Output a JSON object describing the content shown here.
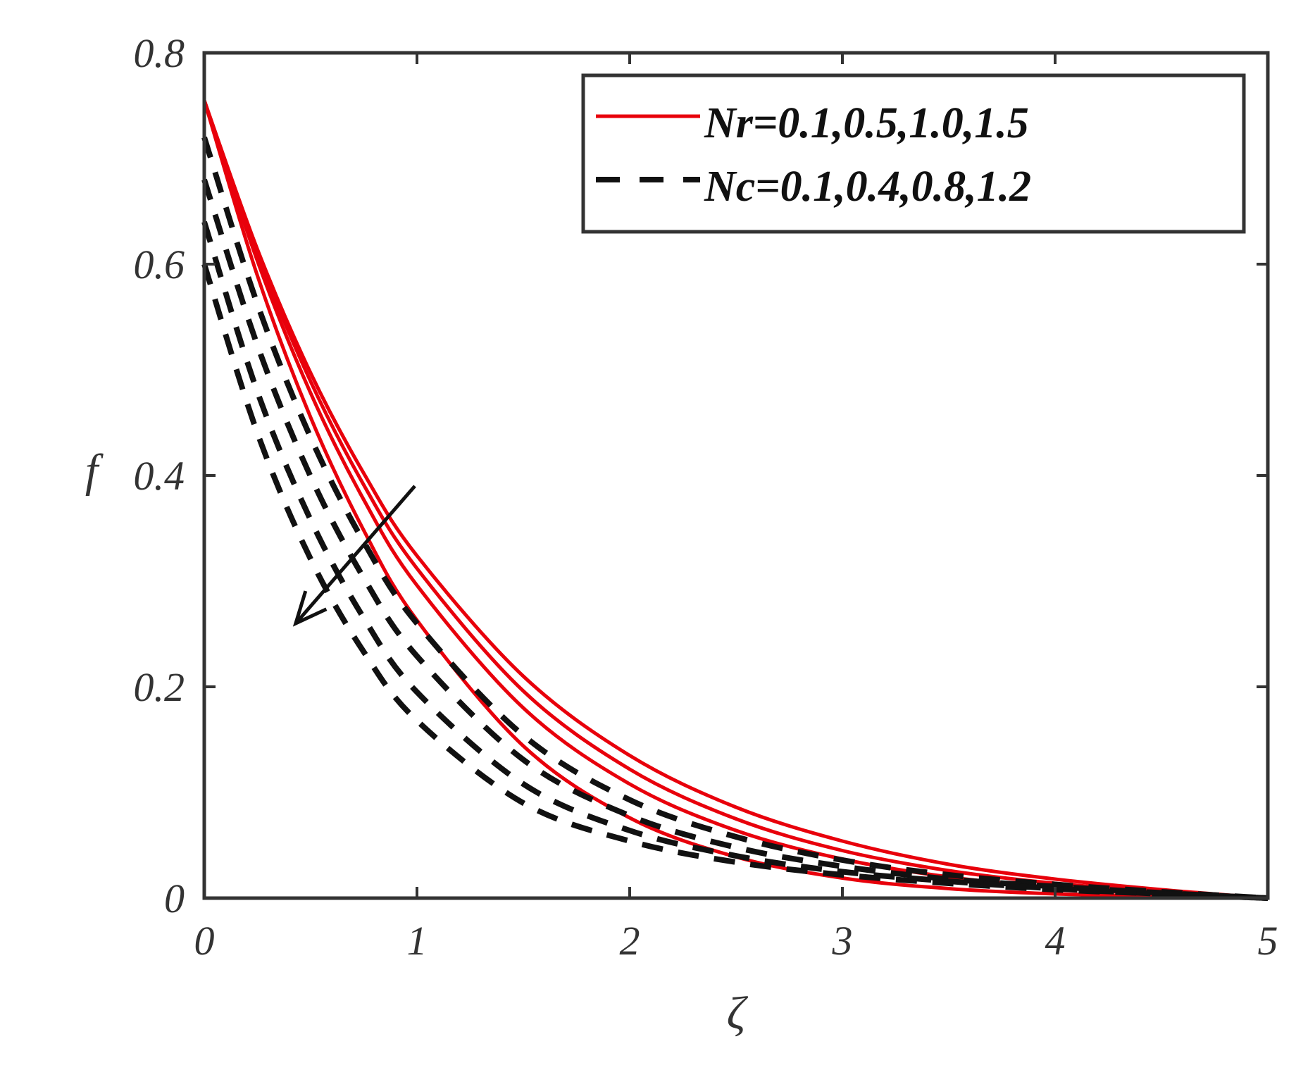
{
  "chart_data": {
    "type": "line",
    "xlabel": "ζ",
    "ylabel": "f",
    "xlim": [
      0,
      5
    ],
    "ylim": [
      0,
      0.8
    ],
    "xticks": [
      "0",
      "1",
      "2",
      "3",
      "4",
      "5"
    ],
    "yticks": [
      "0",
      "0.2",
      "0.4",
      "0.6",
      "0.8"
    ],
    "grid": false,
    "legend_position": "top-right",
    "legend": [
      {
        "label": "Nr=0.1,0.5,1.0,1.5",
        "style": "solid",
        "color": "#e8000b"
      },
      {
        "label": "Nc=0.1,0.4,0.8,1.2",
        "style": "dashed",
        "color": "#111111"
      }
    ],
    "series": [
      {
        "group": "Nr",
        "style": "solid",
        "color": "#e8000b",
        "x": [
          0,
          0.25,
          0.5,
          0.75,
          1,
          1.5,
          2,
          2.5,
          3,
          3.5,
          4,
          4.5,
          5
        ],
        "y": [
          0.755,
          0.614,
          0.497,
          0.402,
          0.324,
          0.21,
          0.135,
          0.086,
          0.054,
          0.032,
          0.018,
          0.008,
          0
        ]
      },
      {
        "group": "Nr",
        "style": "solid",
        "color": "#e8000b",
        "x": [
          0,
          0.25,
          0.5,
          0.75,
          1,
          1.5,
          2,
          2.5,
          3,
          3.5,
          4,
          4.5,
          5
        ],
        "y": [
          0.755,
          0.609,
          0.489,
          0.391,
          0.312,
          0.196,
          0.122,
          0.075,
          0.045,
          0.026,
          0.014,
          0.006,
          0
        ]
      },
      {
        "group": "Nr",
        "style": "solid",
        "color": "#e8000b",
        "x": [
          0,
          0.25,
          0.5,
          0.75,
          1,
          1.5,
          2,
          2.5,
          3,
          3.5,
          4,
          4.5,
          5
        ],
        "y": [
          0.755,
          0.603,
          0.478,
          0.377,
          0.296,
          0.18,
          0.108,
          0.064,
          0.037,
          0.02,
          0.01,
          0.004,
          0
        ]
      },
      {
        "group": "Nr",
        "style": "solid",
        "color": "#e8000b",
        "x": [
          0,
          0.25,
          0.5,
          0.75,
          1,
          1.5,
          2,
          2.5,
          3,
          3.5,
          4,
          4.5,
          5
        ],
        "y": [
          0.755,
          0.589,
          0.455,
          0.348,
          0.263,
          0.144,
          0.076,
          0.039,
          0.019,
          0.009,
          0.004,
          0.002,
          0
        ]
      },
      {
        "group": "Nc",
        "style": "dashed",
        "color": "#111111",
        "x": [
          0,
          0.25,
          0.5,
          0.75,
          1,
          1.5,
          2,
          2.5,
          3,
          3.5,
          4,
          4.5,
          5
        ],
        "y": [
          0.72,
          0.562,
          0.436,
          0.337,
          0.26,
          0.154,
          0.093,
          0.058,
          0.036,
          0.022,
          0.013,
          0.006,
          0
        ]
      },
      {
        "group": "Nc",
        "style": "dashed",
        "color": "#111111",
        "x": [
          0,
          0.25,
          0.5,
          0.75,
          1,
          1.5,
          2,
          2.5,
          3,
          3.5,
          4,
          4.5,
          5
        ],
        "y": [
          0.68,
          0.523,
          0.399,
          0.303,
          0.229,
          0.131,
          0.078,
          0.048,
          0.03,
          0.018,
          0.011,
          0.005,
          0
        ]
      },
      {
        "group": "Nc",
        "style": "dashed",
        "color": "#111111",
        "x": [
          0,
          0.25,
          0.5,
          0.75,
          1,
          1.5,
          2,
          2.5,
          3,
          3.5,
          4,
          4.5,
          5
        ],
        "y": [
          0.64,
          0.479,
          0.358,
          0.265,
          0.195,
          0.108,
          0.064,
          0.04,
          0.025,
          0.016,
          0.009,
          0.004,
          0
        ]
      },
      {
        "group": "Nc",
        "style": "dashed",
        "color": "#111111",
        "x": [
          0,
          0.25,
          0.5,
          0.75,
          1,
          1.5,
          2,
          2.5,
          3,
          3.5,
          4,
          4.5,
          5
        ],
        "y": [
          0.6,
          0.44,
          0.321,
          0.233,
          0.168,
          0.09,
          0.054,
          0.034,
          0.022,
          0.014,
          0.008,
          0.004,
          0
        ]
      }
    ],
    "annotation": {
      "type": "arrow",
      "from": [
        0.99,
        0.39
      ],
      "to": [
        0.43,
        0.26
      ]
    }
  }
}
